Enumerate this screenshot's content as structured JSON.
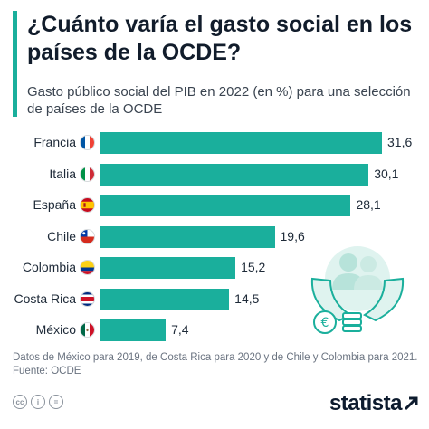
{
  "title": "¿Cuánto varía el gasto social en los países de la OCDE?",
  "subtitle": "Gasto público social del PIB en 2022 (en %) para una selección de países de la OCDE",
  "chart_data": {
    "type": "bar",
    "orientation": "horizontal",
    "title": "¿Cuánto varía el gasto social en los países de la OCDE?",
    "subtitle": "Gasto público social del PIB en 2022 (en %) para una selección de países de la OCDE",
    "categories": [
      "Francia",
      "Italia",
      "España",
      "Chile",
      "Colombia",
      "Costa Rica",
      "México"
    ],
    "values": [
      31.6,
      30.1,
      28.1,
      19.6,
      15.2,
      14.5,
      7.4
    ],
    "value_labels": [
      "31,6",
      "30,1",
      "28,1",
      "19,6",
      "15,2",
      "14,5",
      "7,4"
    ],
    "xlim": [
      0,
      31.6
    ],
    "grid": false,
    "legend": "none",
    "bar_color": "#1aaf9c"
  },
  "flags": [
    "france-flag-icon",
    "italy-flag-icon",
    "spain-flag-icon",
    "chile-flag-icon",
    "colombia-flag-icon",
    "costa-rica-flag-icon",
    "mexico-flag-icon"
  ],
  "notes": {
    "line1": "Datos de México para 2019, de Costa Rica para 2020 y de Chile y Colombia para 2021.",
    "source": "Fuente: OCDE"
  },
  "footer": {
    "icons": [
      "cc-icon",
      "by-icon",
      "equals-icon"
    ],
    "logo": "statista"
  },
  "colors": {
    "accent": "#1aaf9c",
    "title": "#111c2b",
    "note": "#6a7380"
  }
}
